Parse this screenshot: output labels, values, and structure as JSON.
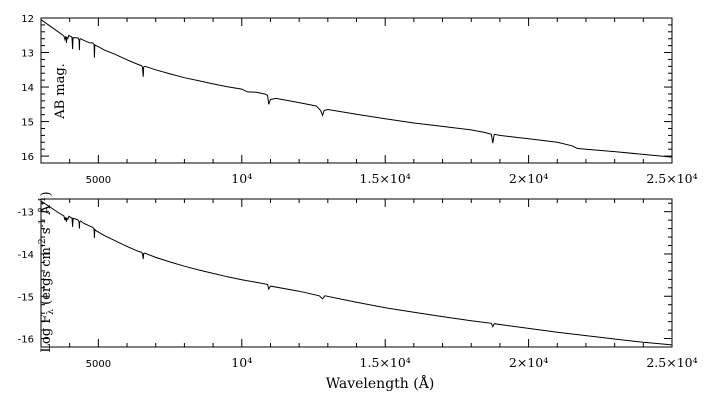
{
  "chart_data": [
    {
      "type": "line",
      "ylabel": "AB mag.",
      "xlim": [
        3000,
        25000
      ],
      "ylim": [
        16.2,
        12
      ],
      "y_inverted": true,
      "y_ticks": [
        "12",
        "13",
        "14",
        "15",
        "16"
      ],
      "x_ticks": [
        "5000",
        "10⁴",
        "1.5×10⁴",
        "2×10⁴",
        "2.5×10⁴"
      ],
      "series": [
        {
          "x": [
            3000,
            3600,
            3800,
            3835,
            3860,
            3890,
            3900,
            3935,
            3970,
            4000,
            4050,
            4080,
            4101,
            4120,
            4200,
            4300,
            4330,
            4340,
            4350,
            4380,
            4500,
            4700,
            4800,
            4850,
            4861,
            4875,
            4920,
            5200,
            5600,
            6000,
            6400,
            6500,
            6540,
            6563,
            6580,
            6620,
            7000,
            7500,
            8000,
            8500,
            9000,
            9500,
            10000,
            10200,
            10500,
            10800,
            10900,
            10940,
            11000,
            11200,
            12000,
            12600,
            12750,
            12818,
            12870,
            13000,
            14000,
            15000,
            16000,
            17000,
            18000,
            18500,
            18700,
            18751,
            18800,
            19000,
            20000,
            21000,
            21500,
            21700,
            22000,
            23000,
            24000,
            25000
          ],
          "y": [
            12.05,
            12.4,
            12.52,
            12.62,
            12.53,
            12.72,
            12.57,
            12.6,
            12.5,
            12.52,
            12.54,
            12.56,
            12.9,
            12.57,
            12.57,
            12.58,
            12.65,
            12.93,
            12.63,
            12.6,
            12.65,
            12.72,
            12.72,
            12.76,
            13.15,
            12.78,
            12.8,
            12.92,
            13.06,
            13.21,
            13.35,
            13.38,
            13.42,
            13.7,
            13.42,
            13.4,
            13.5,
            13.62,
            13.73,
            13.82,
            13.91,
            13.99,
            14.06,
            14.14,
            14.15,
            14.2,
            14.24,
            14.5,
            14.36,
            14.33,
            14.45,
            14.55,
            14.68,
            14.82,
            14.68,
            14.65,
            14.79,
            14.92,
            15.04,
            15.14,
            15.24,
            15.32,
            15.37,
            15.62,
            15.37,
            15.4,
            15.5,
            15.6,
            15.7,
            15.78,
            15.8,
            15.87,
            15.95,
            16.03
          ]
        }
      ]
    },
    {
      "type": "line",
      "ylabel_main": "Log F",
      "ylabel_sub": "λ",
      "ylabel_units": "(ergs cm",
      "ylabel_exp1": "-2",
      "ylabel_s": " s",
      "ylabel_exp2": "-1",
      "ylabel_A": " Å",
      "ylabel_exp3": "-1",
      "ylabel_close": ")",
      "xlabel": "Wavelength (Å)",
      "xlim": [
        3000,
        25000
      ],
      "ylim": [
        -16.2,
        -12.7
      ],
      "y_ticks": [
        "-13",
        "-14",
        "-15",
        "-16"
      ],
      "x_ticks": [
        "5000",
        "10⁴",
        "1.5×10⁴",
        "2×10⁴",
        "2.5×10⁴"
      ],
      "series": [
        {
          "x": [
            3000,
            3600,
            3800,
            3835,
            3860,
            3890,
            3900,
            3935,
            3970,
            4000,
            4050,
            4080,
            4101,
            4120,
            4200,
            4300,
            4330,
            4340,
            4350,
            4380,
            4500,
            4700,
            4800,
            4850,
            4861,
            4875,
            4920,
            5200,
            5600,
            6000,
            6400,
            6500,
            6540,
            6563,
            6580,
            6620,
            7000,
            7500,
            8000,
            8500,
            9000,
            9500,
            10000,
            10500,
            10900,
            10940,
            11000,
            12000,
            12700,
            12818,
            12900,
            14000,
            15000,
            16000,
            17000,
            18000,
            18700,
            18751,
            18800,
            20000,
            21000,
            22000,
            23000,
            24000,
            25000
          ],
          "y": [
            -12.75,
            -13.02,
            -13.1,
            -13.2,
            -13.13,
            -13.24,
            -13.16,
            -13.18,
            -13.11,
            -13.12,
            -13.14,
            -13.15,
            -13.36,
            -13.16,
            -13.17,
            -13.2,
            -13.25,
            -13.4,
            -13.24,
            -13.22,
            -13.28,
            -13.34,
            -13.37,
            -13.41,
            -13.62,
            -13.42,
            -13.45,
            -13.56,
            -13.69,
            -13.82,
            -13.94,
            -13.96,
            -13.99,
            -14.12,
            -13.99,
            -13.98,
            -14.08,
            -14.19,
            -14.29,
            -14.38,
            -14.46,
            -14.54,
            -14.61,
            -14.67,
            -14.72,
            -14.83,
            -14.76,
            -14.88,
            -14.99,
            -15.06,
            -14.99,
            -15.14,
            -15.27,
            -15.38,
            -15.48,
            -15.58,
            -15.64,
            -15.72,
            -15.65,
            -15.76,
            -15.85,
            -15.93,
            -16.01,
            -16.09,
            -16.15
          ]
        }
      ]
    }
  ]
}
